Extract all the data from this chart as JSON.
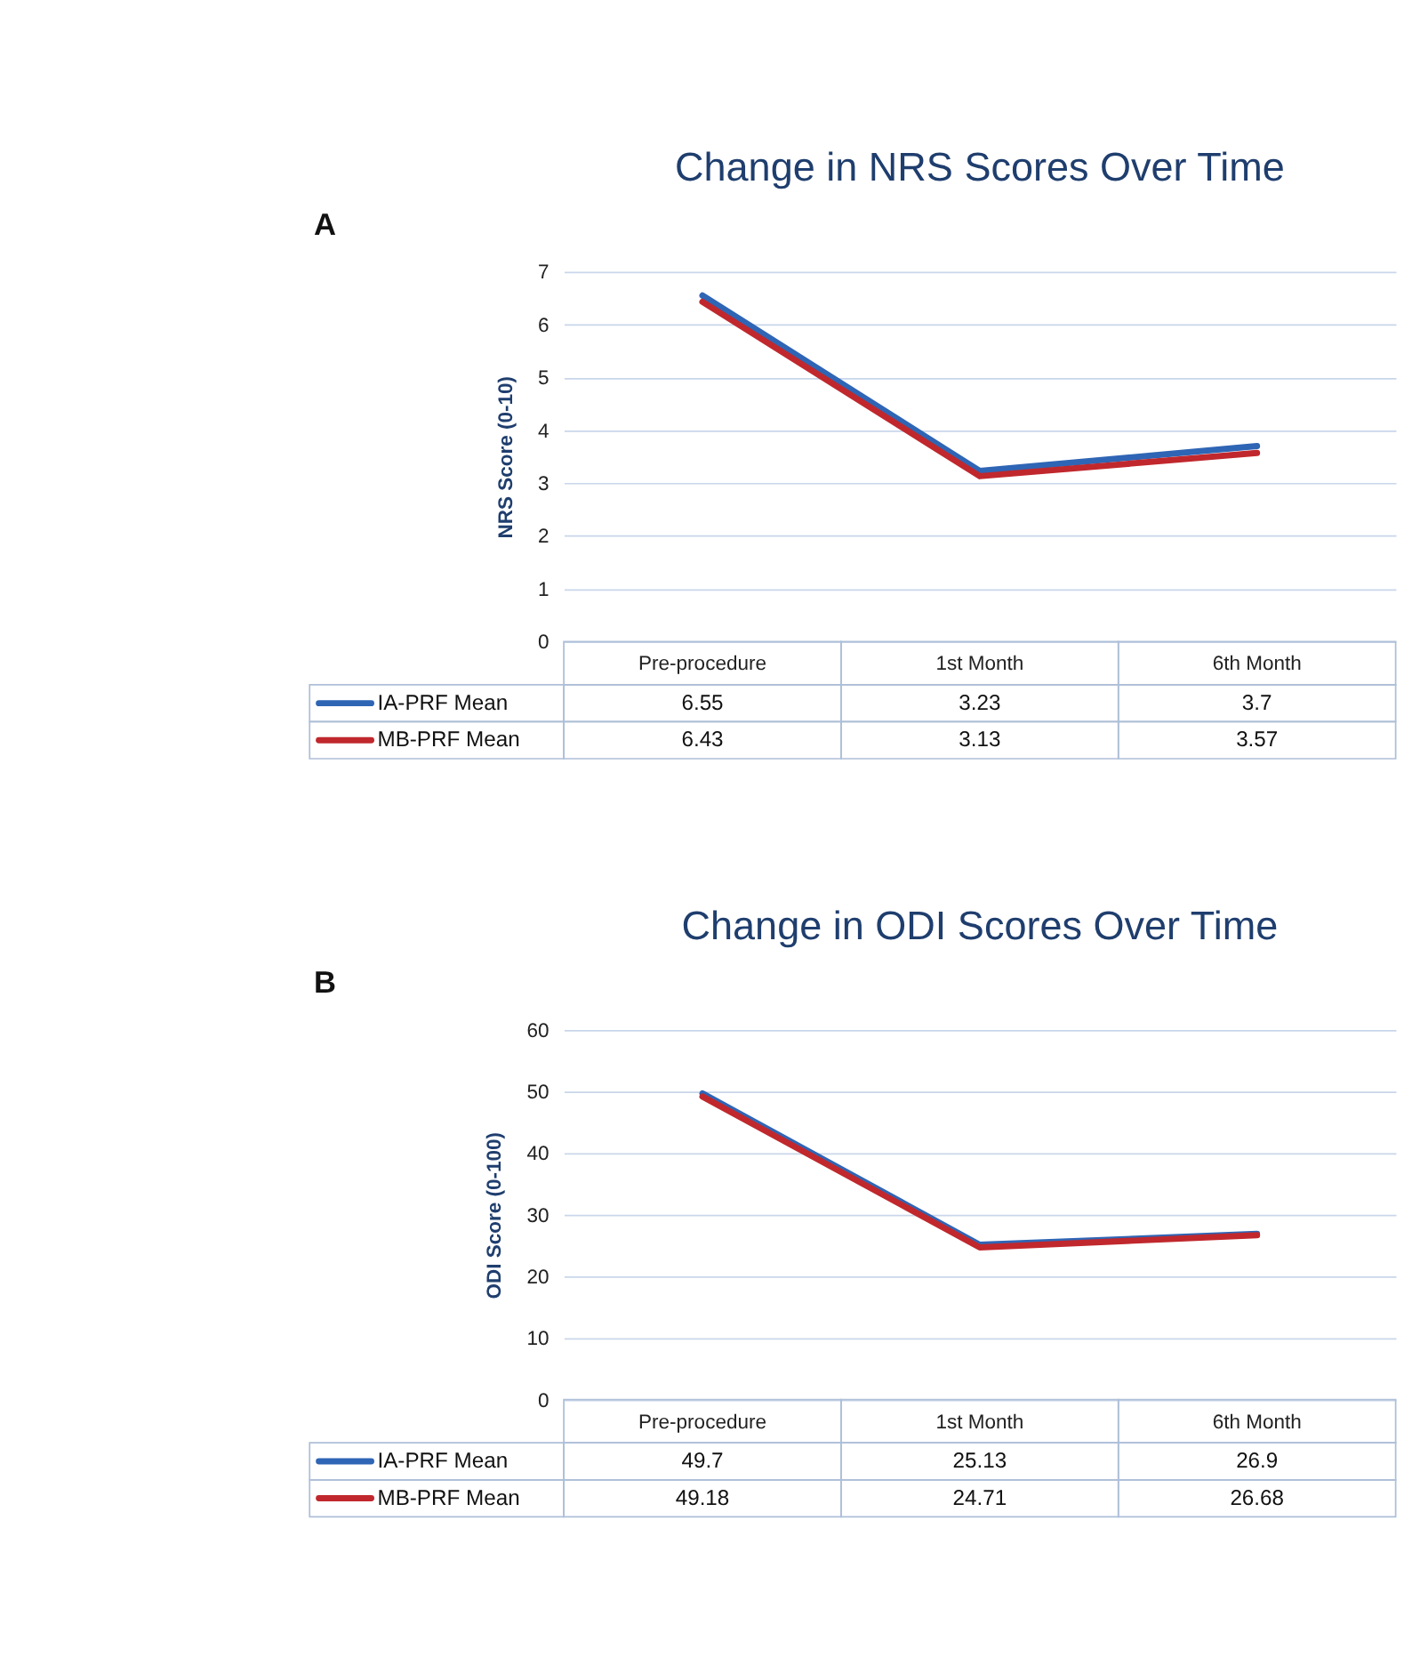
{
  "chart_data": [
    {
      "type": "line",
      "title": "Change in NRS Scores Over Time",
      "ylabel": "NRS Score (0-10)",
      "annotations": [
        "A"
      ],
      "categories": [
        "Pre-procedure",
        "1st Month",
        "6th Month"
      ],
      "series": [
        {
          "name": "IA-PRF Mean",
          "color": "#2f65b5",
          "values": [
            6.55,
            3.23,
            3.7
          ]
        },
        {
          "name": "MB-PRF Mean",
          "color": "#c0282d",
          "values": [
            6.43,
            3.13,
            3.57
          ]
        }
      ],
      "ylim": [
        0,
        7
      ],
      "yticks": [
        0,
        1,
        2,
        3,
        4,
        5,
        6,
        7
      ],
      "grid": "y",
      "data_labels": true,
      "legend": "bottom",
      "marker": "none",
      "line_style": "solid"
    },
    {
      "type": "line",
      "title": "Change in ODI Scores Over Time",
      "ylabel": "ODI Score (0-100)",
      "annotations": [
        "B"
      ],
      "categories": [
        "Pre-procedure",
        "1st Month",
        "6th Month"
      ],
      "series": [
        {
          "name": "IA-PRF Mean",
          "color": "#2f65b5",
          "values": [
            49.7,
            25.13,
            26.9
          ]
        },
        {
          "name": "MB-PRF Mean",
          "color": "#c0282d",
          "values": [
            49.18,
            24.71,
            26.68
          ]
        }
      ],
      "ylim": [
        0,
        60
      ],
      "yticks": [
        0,
        10,
        20,
        30,
        40,
        50,
        60
      ],
      "grid": "y",
      "data_labels": true,
      "legend": "bottom",
      "marker": "none",
      "line_style": "solid"
    }
  ]
}
